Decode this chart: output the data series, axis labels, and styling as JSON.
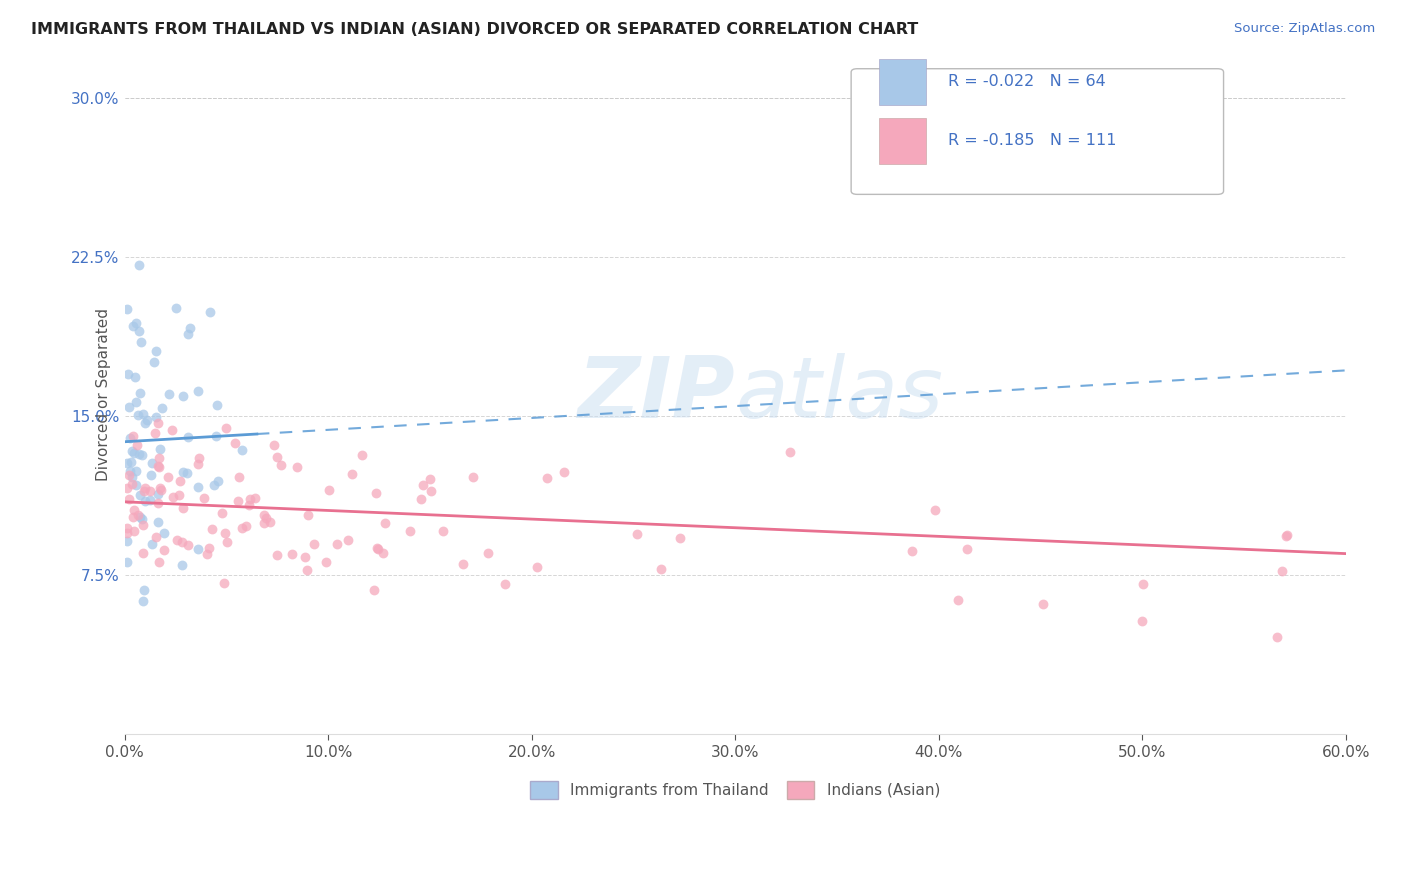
{
  "title": "IMMIGRANTS FROM THAILAND VS INDIAN (ASIAN) DIVORCED OR SEPARATED CORRELATION CHART",
  "source_text": "Source: ZipAtlas.com",
  "ylabel": "Divorced or Separated",
  "watermark_zip": "ZIP",
  "watermark_atlas": "atlas",
  "xlim": [
    0.0,
    0.6
  ],
  "ylim": [
    0.0,
    0.32
  ],
  "xtick_labels": [
    "0.0%",
    "10.0%",
    "20.0%",
    "30.0%",
    "40.0%",
    "50.0%",
    "60.0%"
  ],
  "xtick_vals": [
    0.0,
    0.1,
    0.2,
    0.3,
    0.4,
    0.5,
    0.6
  ],
  "ytick_labels": [
    "7.5%",
    "15.0%",
    "22.5%",
    "30.0%"
  ],
  "ytick_vals": [
    0.075,
    0.15,
    0.225,
    0.3
  ],
  "legend_bottom_label1": "Immigrants from Thailand",
  "legend_bottom_label2": "Indians (Asian)",
  "color_blue": "#A8C8E8",
  "color_pink": "#F5A8BC",
  "color_blue_line": "#5B9BD5",
  "color_pink_line": "#E87090",
  "color_text": "#555555",
  "color_blue_label": "#4472C4",
  "color_grid": "#cccccc",
  "R1": -0.022,
  "N1": 64,
  "R2": -0.185,
  "N2": 111
}
